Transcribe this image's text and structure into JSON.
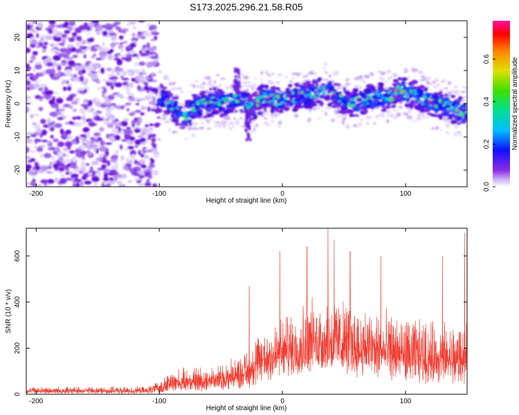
{
  "title": "S173.2025.296.21.58.R05",
  "chart_data": [
    {
      "type": "heatmap",
      "xlabel": "Height of straight line (km)",
      "ylabel": "Frequency (Hz)",
      "xlim": [
        -208,
        150
      ],
      "ylim": [
        -25,
        25
      ],
      "xticks": [
        -200,
        -100,
        0,
        100
      ],
      "yticks": [
        -20,
        -10,
        0,
        10,
        20
      ],
      "noise_region_x": [
        -208,
        -102
      ],
      "signal_center_freq": [
        {
          "x": -100,
          "y": 3
        },
        {
          "x": -90,
          "y": -1
        },
        {
          "x": -80,
          "y": -4
        },
        {
          "x": -70,
          "y": -1
        },
        {
          "x": -55,
          "y": 1
        },
        {
          "x": -45,
          "y": 0
        },
        {
          "x": -35,
          "y": 2
        },
        {
          "x": -25,
          "y": -1
        },
        {
          "x": -15,
          "y": 2
        },
        {
          "x": -5,
          "y": 1
        },
        {
          "x": 5,
          "y": 2
        },
        {
          "x": 15,
          "y": 2
        },
        {
          "x": 25,
          "y": 3
        },
        {
          "x": 35,
          "y": 4
        },
        {
          "x": 45,
          "y": 2
        },
        {
          "x": 55,
          "y": 0
        },
        {
          "x": 65,
          "y": 1
        },
        {
          "x": 75,
          "y": 2
        },
        {
          "x": 85,
          "y": 2
        },
        {
          "x": 95,
          "y": 4
        },
        {
          "x": 105,
          "y": 3
        },
        {
          "x": 115,
          "y": 1
        },
        {
          "x": 125,
          "y": 0
        },
        {
          "x": 135,
          "y": -1
        },
        {
          "x": 150,
          "y": -3
        }
      ],
      "colorbar": {
        "label": "Normalized spectral amplitude",
        "range": [
          0,
          0.78
        ],
        "ticks": [
          0.0,
          0.2,
          0.4,
          0.6
        ],
        "tick_labels": [
          "0.0",
          "0.2",
          "0.4",
          "0.6"
        ]
      }
    },
    {
      "type": "line",
      "xlabel": "Height of straight line (km)",
      "ylabel": "SNR (10 * v/v)",
      "xlim": [
        -208,
        150
      ],
      "ylim": [
        0,
        720
      ],
      "xticks": [
        -200,
        -100,
        0,
        100
      ],
      "yticks": [
        0,
        200,
        400,
        600
      ],
      "line_color": "#f03c30",
      "envelope": [
        {
          "x": -208,
          "lo": 2,
          "hi": 35
        },
        {
          "x": -110,
          "lo": 2,
          "hi": 35
        },
        {
          "x": -100,
          "lo": 5,
          "hi": 60
        },
        {
          "x": -90,
          "lo": 10,
          "hi": 110
        },
        {
          "x": -70,
          "lo": 10,
          "hi": 130
        },
        {
          "x": -50,
          "lo": 15,
          "hi": 140
        },
        {
          "x": -30,
          "lo": 20,
          "hi": 200
        },
        {
          "x": -15,
          "lo": 40,
          "hi": 330
        },
        {
          "x": 0,
          "lo": 60,
          "hi": 360
        },
        {
          "x": 20,
          "lo": 80,
          "hi": 440
        },
        {
          "x": 40,
          "lo": 90,
          "hi": 460
        },
        {
          "x": 60,
          "lo": 70,
          "hi": 420
        },
        {
          "x": 80,
          "lo": 60,
          "hi": 380
        },
        {
          "x": 100,
          "lo": 50,
          "hi": 360
        },
        {
          "x": 120,
          "lo": 40,
          "hi": 340
        },
        {
          "x": 150,
          "lo": 40,
          "hi": 320
        }
      ],
      "peaks": [
        {
          "x": 37,
          "y": 720
        },
        {
          "x": 42,
          "y": 670
        },
        {
          "x": 20,
          "y": 640
        },
        {
          "x": 148,
          "y": 700
        },
        {
          "x": 55,
          "y": 620
        },
        {
          "x": 80,
          "y": 600
        },
        {
          "x": -2,
          "y": 620
        },
        {
          "x": -27,
          "y": 470
        },
        {
          "x": 130,
          "y": 600
        }
      ]
    }
  ]
}
